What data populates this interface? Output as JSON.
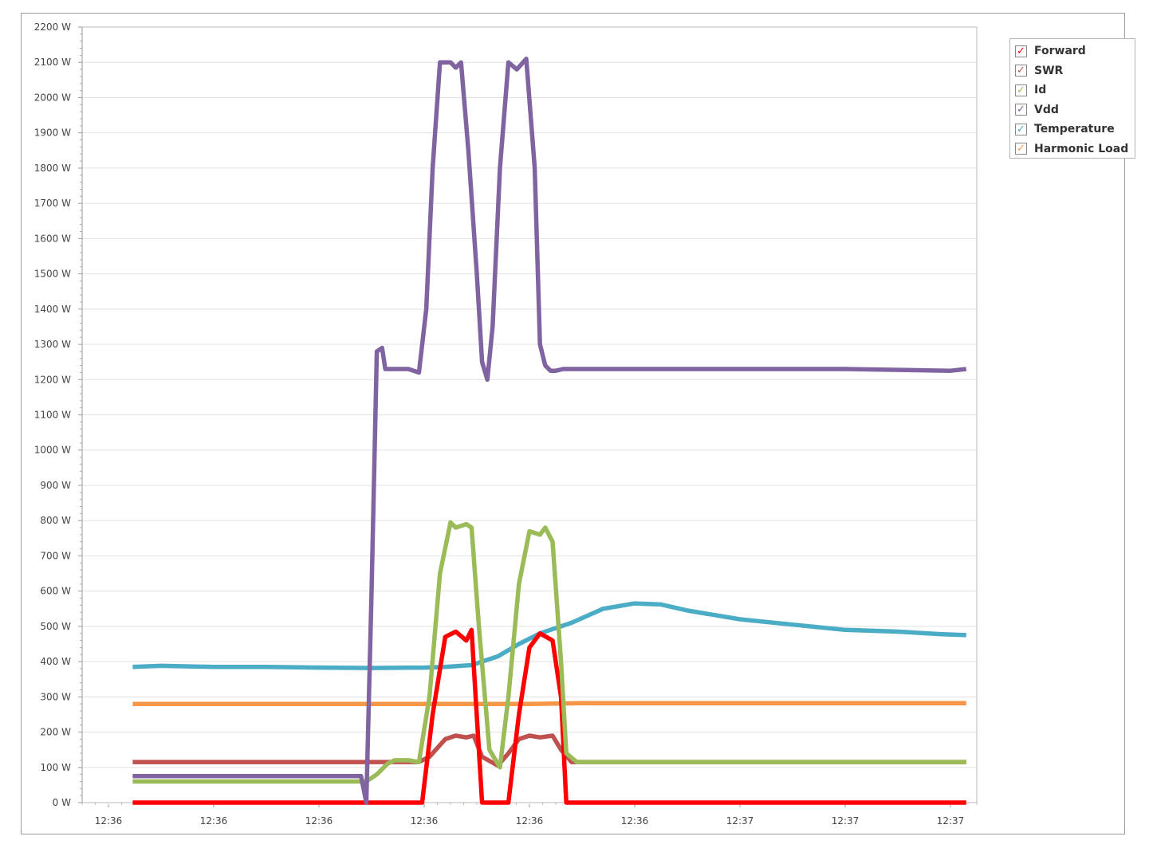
{
  "chart_data": {
    "type": "line",
    "title": "",
    "xlabel": "",
    "ylabel": "",
    "ylim": [
      0,
      2200
    ],
    "y_ticks": [
      0,
      100,
      200,
      300,
      400,
      500,
      600,
      700,
      800,
      900,
      1000,
      1100,
      1200,
      1300,
      1400,
      1500,
      1600,
      1700,
      1800,
      1900,
      2000,
      2100,
      2200
    ],
    "y_tick_labels": [
      "0 W",
      "100 W",
      "200 W",
      "300 W",
      "400 W",
      "500 W",
      "600 W",
      "700 W",
      "800 W",
      "900 W",
      "1000 W",
      "1100 W",
      "1200 W",
      "1300 W",
      "1400 W",
      "1500 W",
      "1600 W",
      "1700 W",
      "1800 W",
      "1900 W",
      "2000 W",
      "2100 W",
      "2200 W"
    ],
    "xlim": [
      -0.25,
      8.25
    ],
    "x_ticks": [
      0,
      1,
      2,
      3,
      4,
      5,
      6,
      7,
      8
    ],
    "x_tick_labels": [
      "12:36",
      "12:36",
      "12:36",
      "12:36",
      "12:36",
      "12:36",
      "12:37",
      "12:37",
      "12:37"
    ],
    "grid": true,
    "legend_position": "top-right",
    "series": [
      {
        "name": "Forward",
        "color": "#ff0000",
        "x": [
          0.23,
          2.9,
          2.98,
          3.08,
          3.2,
          3.3,
          3.4,
          3.45,
          3.55,
          3.62,
          3.7,
          3.8,
          3.9,
          4.0,
          4.1,
          4.22,
          4.3,
          4.35,
          4.45,
          8.15
        ],
        "y": [
          0,
          0,
          0,
          250,
          470,
          485,
          460,
          490,
          0,
          0,
          0,
          0,
          250,
          440,
          480,
          460,
          300,
          0,
          0,
          0
        ]
      },
      {
        "name": "SWR",
        "color": "#c0504d",
        "x": [
          0.23,
          2.95,
          3.05,
          3.2,
          3.3,
          3.4,
          3.47,
          3.55,
          3.7,
          3.8,
          3.9,
          4.0,
          4.1,
          4.22,
          4.3,
          4.4,
          8.15
        ],
        "y": [
          115,
          115,
          130,
          180,
          190,
          185,
          190,
          130,
          105,
          140,
          180,
          190,
          185,
          190,
          150,
          115,
          115
        ]
      },
      {
        "name": "Id",
        "color": "#9bbb59",
        "x": [
          0.23,
          2.45,
          2.55,
          2.65,
          2.72,
          2.8,
          2.85,
          2.95,
          3.05,
          3.15,
          3.25,
          3.3,
          3.4,
          3.45,
          3.52,
          3.62,
          3.72,
          3.8,
          3.9,
          4.0,
          4.1,
          4.15,
          4.22,
          4.3,
          4.35,
          4.45,
          5.0,
          8.15
        ],
        "y": [
          60,
          60,
          80,
          110,
          120,
          120,
          120,
          115,
          300,
          650,
          795,
          780,
          790,
          780,
          500,
          150,
          100,
          300,
          620,
          770,
          760,
          780,
          740,
          400,
          140,
          115,
          115,
          115
        ]
      },
      {
        "name": "Vdd",
        "color": "#8064a2",
        "x": [
          0.23,
          2.35,
          2.4,
          2.45,
          2.5,
          2.55,
          2.6,
          2.63,
          2.7,
          2.85,
          2.95,
          3.02,
          3.08,
          3.15,
          3.25,
          3.3,
          3.35,
          3.42,
          3.5,
          3.55,
          3.6,
          3.65,
          3.72,
          3.8,
          3.88,
          3.97,
          4.05,
          4.1,
          4.15,
          4.2,
          4.25,
          4.32,
          4.4,
          4.5,
          4.6,
          5.0,
          6.0,
          7.0,
          8.0,
          8.15
        ],
        "y": [
          75,
          75,
          75,
          0,
          600,
          1280,
          1290,
          1230,
          1230,
          1230,
          1220,
          1400,
          1800,
          2100,
          2100,
          2085,
          2100,
          1850,
          1500,
          1250,
          1200,
          1350,
          1800,
          2100,
          2080,
          2110,
          1800,
          1300,
          1240,
          1225,
          1225,
          1230,
          1230,
          1230,
          1230,
          1230,
          1230,
          1230,
          1225,
          1230
        ]
      },
      {
        "name": "Temperature",
        "color": "#4bacc6",
        "x": [
          0.23,
          0.5,
          1.0,
          1.5,
          2.0,
          2.5,
          3.0,
          3.2,
          3.45,
          3.7,
          3.9,
          4.1,
          4.4,
          4.7,
          5.0,
          5.25,
          5.5,
          6.0,
          6.5,
          7.0,
          7.5,
          7.9,
          8.15
        ],
        "y": [
          385,
          388,
          385,
          385,
          383,
          382,
          383,
          385,
          390,
          415,
          450,
          480,
          510,
          550,
          565,
          562,
          545,
          520,
          505,
          490,
          485,
          478,
          475
        ]
      },
      {
        "name": "Harmonic Load",
        "color": "#f79646",
        "x": [
          0.23,
          2.5,
          3.0,
          4.0,
          4.5,
          5.0,
          6.0,
          7.0,
          8.15
        ],
        "y": [
          280,
          280,
          280,
          280,
          282,
          282,
          282,
          282,
          282
        ]
      }
    ]
  }
}
